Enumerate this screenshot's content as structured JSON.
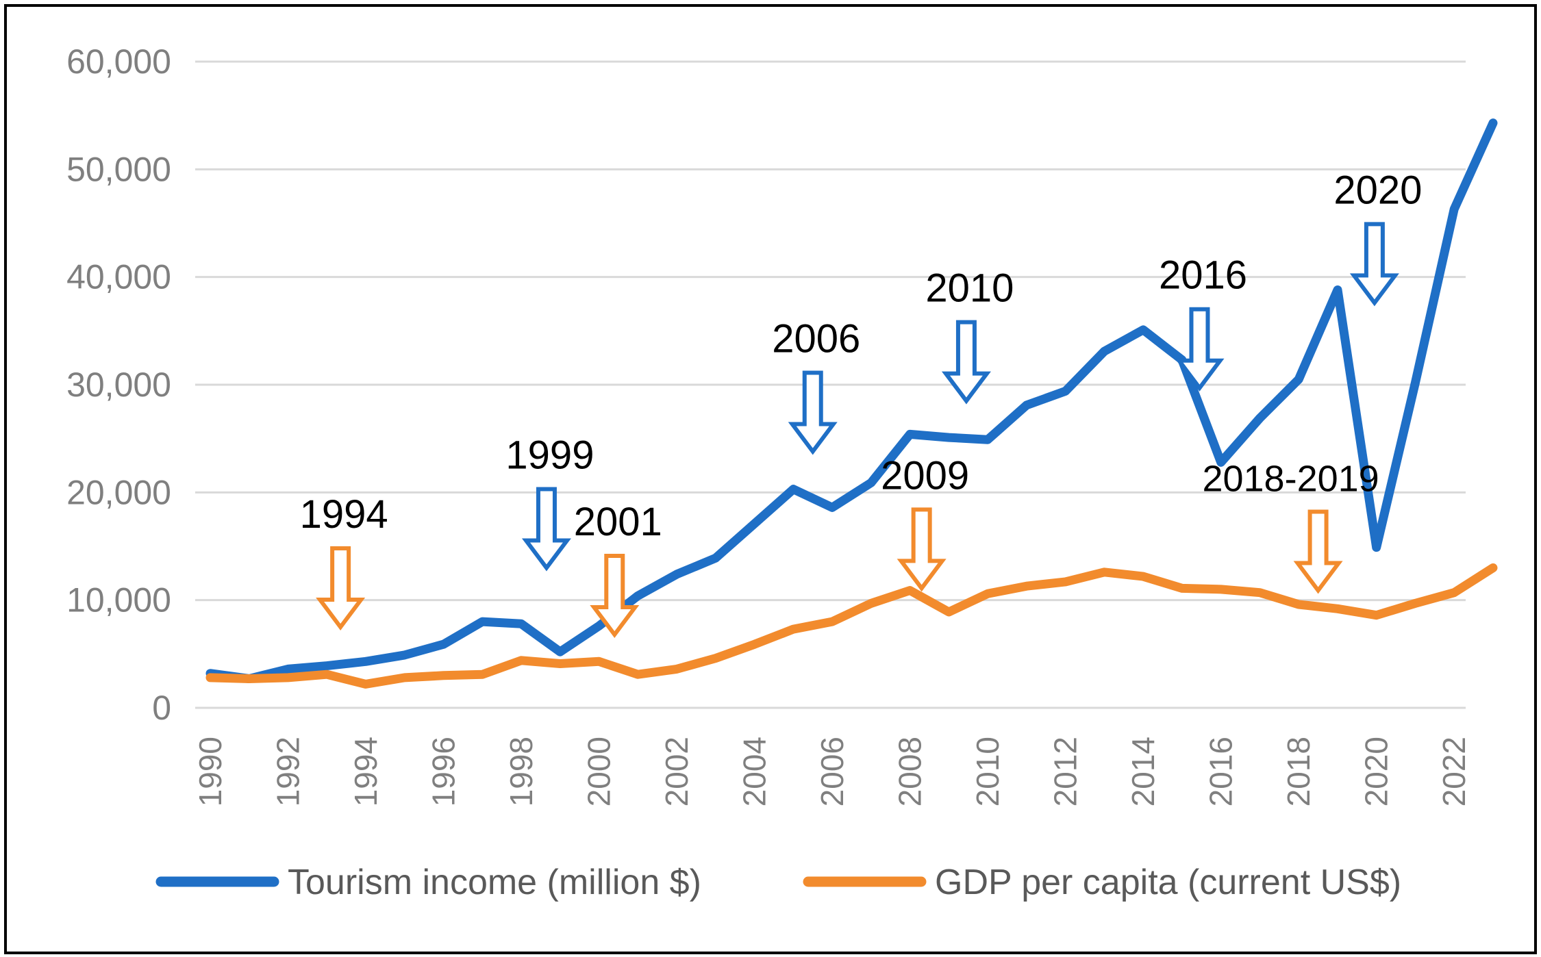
{
  "chart_data": {
    "type": "line",
    "title": "",
    "xlabel": "",
    "ylabel": "",
    "x": [
      1990,
      1991,
      1992,
      1993,
      1994,
      1995,
      1996,
      1997,
      1998,
      1999,
      2000,
      2001,
      2002,
      2003,
      2004,
      2005,
      2006,
      2007,
      2008,
      2009,
      2010,
      2011,
      2012,
      2013,
      2014,
      2015,
      2016,
      2017,
      2018,
      2019,
      2020,
      2021,
      2022,
      2023
    ],
    "xlim": [
      1990,
      2023
    ],
    "ylim": [
      0,
      60000
    ],
    "yticks": [
      0,
      10000,
      20000,
      30000,
      40000,
      50000,
      60000
    ],
    "ytick_labels": [
      "0",
      "10,000",
      "20,000",
      "30,000",
      "40,000",
      "50,000",
      "60,000"
    ],
    "xtick_labels": [
      "1990",
      "1992",
      "1994",
      "1996",
      "1998",
      "2000",
      "2002",
      "2004",
      "2006",
      "2008",
      "2010",
      "2012",
      "2014",
      "2016",
      "2018",
      "2020",
      "2022"
    ],
    "grid": true,
    "legend_position": "bottom",
    "series": [
      {
        "name": "Tourism income (million $)",
        "color": "#1f6fc6",
        "values": [
          3200,
          2700,
          3600,
          3900,
          4300,
          4900,
          5900,
          8000,
          7800,
          5200,
          7600,
          10400,
          12400,
          13900,
          17100,
          20300,
          18600,
          20900,
          25400,
          25100,
          24900,
          28100,
          29400,
          33100,
          35100,
          32300,
          22800,
          26900,
          30500,
          38800,
          14900,
          30200,
          46300,
          54300
        ]
      },
      {
        "name": "GDP per capita (current US$)",
        "color": "#f28b2d",
        "values": [
          2800,
          2700,
          2800,
          3100,
          2200,
          2800,
          3000,
          3100,
          4400,
          4100,
          4300,
          3100,
          3600,
          4600,
          5900,
          7300,
          8000,
          9700,
          10900,
          8900,
          10600,
          11300,
          11700,
          12600,
          12200,
          11100,
          11000,
          10700,
          9600,
          9200,
          8600,
          9700,
          10700,
          13000
        ]
      }
    ],
    "annotations": [
      {
        "label": "1994",
        "year": 1993.35,
        "value": 7500,
        "color": "#f28b2d"
      },
      {
        "label": "1999",
        "year": 1998.65,
        "value": 13000,
        "color": "#1f6fc6"
      },
      {
        "label": "2001",
        "year": 2000.4,
        "value": 6800,
        "color": "#f28b2d"
      },
      {
        "label": "2006",
        "year": 2005.5,
        "value": 23800,
        "color": "#1f6fc6"
      },
      {
        "label": "2009",
        "year": 2008.3,
        "value": 11100,
        "color": "#f28b2d"
      },
      {
        "label": "2010",
        "year": 2009.45,
        "value": 28500,
        "color": "#1f6fc6"
      },
      {
        "label": "2016",
        "year": 2015.45,
        "value": 29700,
        "color": "#1f6fc6"
      },
      {
        "label": "2018-2019",
        "year": 2018.5,
        "value": 10900,
        "color": "#f28b2d"
      },
      {
        "label": "2020",
        "year": 2019.95,
        "value": 37600,
        "color": "#1f6fc6"
      }
    ]
  }
}
